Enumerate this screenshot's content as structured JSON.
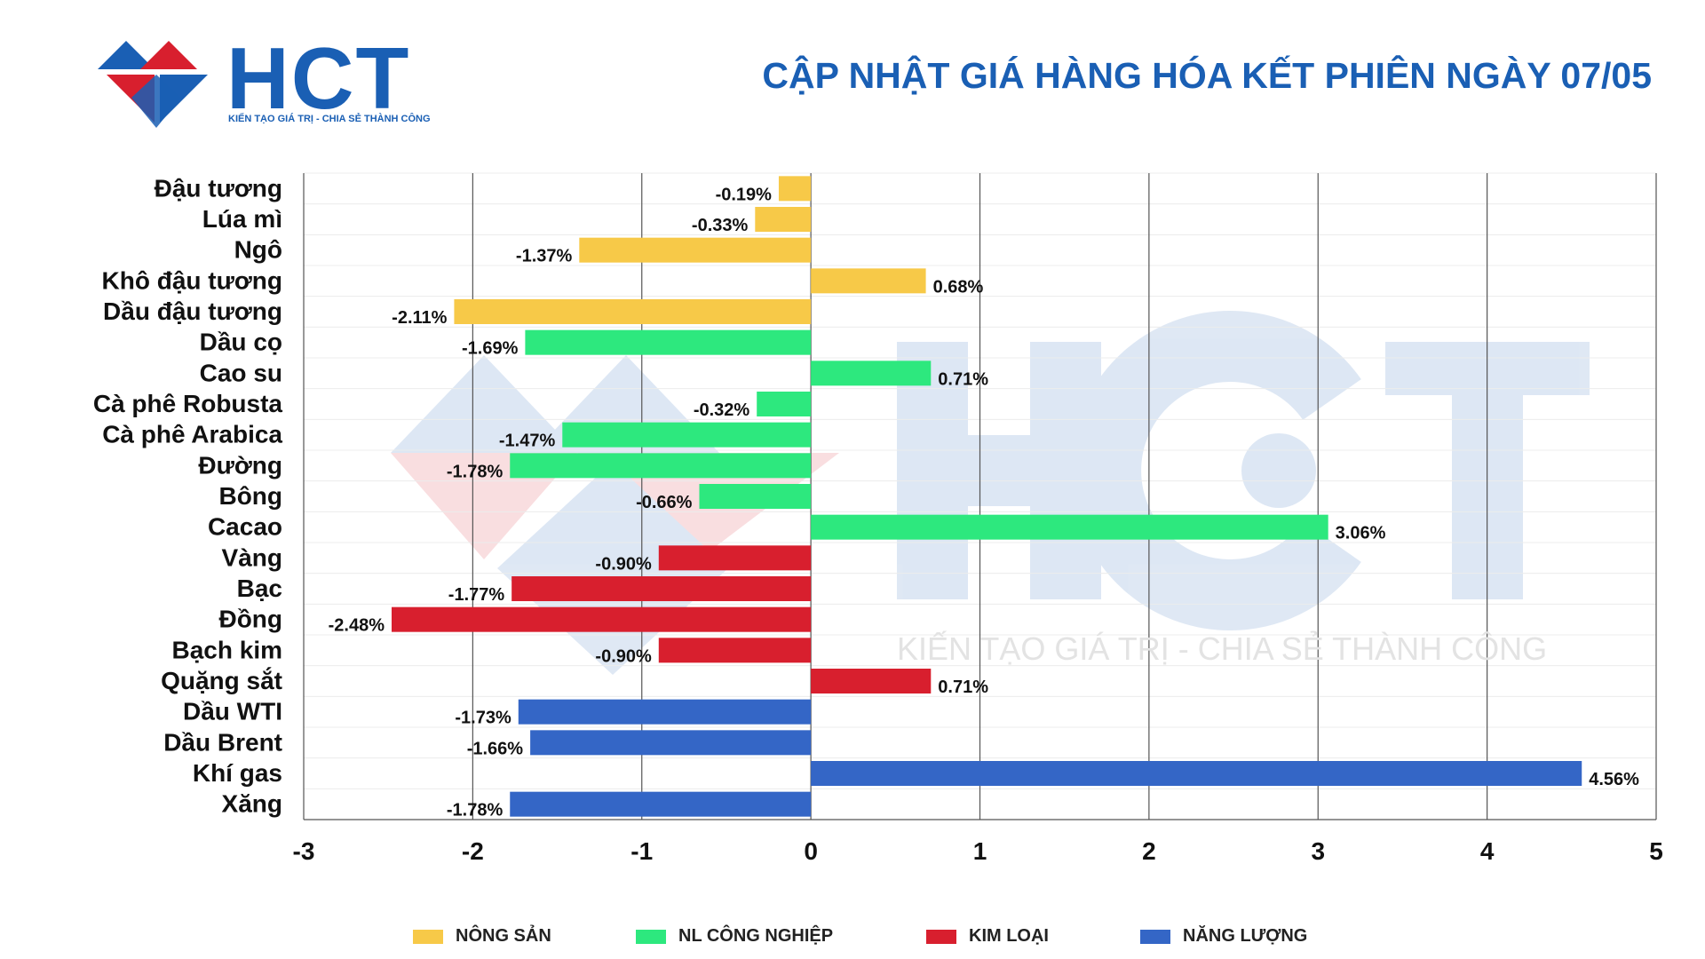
{
  "brand": {
    "name": "HCT",
    "tagline": "KIẾN TẠO GIÁ TRỊ - CHIA SẺ THÀNH CÔNG",
    "color": "#1a5fb4"
  },
  "title": "CẬP NHẬT GIÁ HÀNG HÓA KẾT PHIÊN NGÀY 07/05",
  "chart_data": {
    "type": "bar",
    "orientation": "horizontal",
    "categories": [
      "Đậu tương",
      "Lúa mì",
      "Ngô",
      "Khô đậu tương",
      "Dầu đậu tương",
      "Dầu cọ",
      "Cao su",
      "Cà phê Robusta",
      "Cà phê Arabica",
      "Đường",
      "Bông",
      "Cacao",
      "Vàng",
      "Bạc",
      "Đồng",
      "Bạch kim",
      "Quặng sắt",
      "Dầu WTI",
      "Dầu Brent",
      "Khí gas",
      "Xăng"
    ],
    "values": [
      -0.19,
      -0.33,
      -1.37,
      0.68,
      -2.11,
      -1.69,
      0.71,
      -0.32,
      -1.47,
      -1.78,
      -0.66,
      3.06,
      -0.9,
      -1.77,
      -2.48,
      -0.9,
      0.71,
      -1.73,
      -1.66,
      4.56,
      -1.78
    ],
    "data_labels": [
      "-0.19%",
      "-0.33%",
      "-1.37%",
      "0.68%",
      "-2.11%",
      "-1.69%",
      "0.71%",
      "-0.32%",
      "-1.47%",
      "-1.78%",
      "-0.66%",
      "3.06%",
      "-0.90%",
      "-1.77%",
      "-2.48%",
      "-0.90%",
      "0.71%",
      "-1.73%",
      "-1.66%",
      "4.56%",
      "-1.78%"
    ],
    "groups": [
      "Nông sản",
      "Nông sản",
      "Nông sản",
      "Nông sản",
      "Nông sản",
      "NL công nghiệp",
      "NL công nghiệp",
      "NL công nghiệp",
      "NL công nghiệp",
      "NL công nghiệp",
      "NL công nghiệp",
      "NL công nghiệp",
      "Kim loại",
      "Kim loại",
      "Kim loại",
      "Kim loại",
      "Kim loại",
      "Năng lượng",
      "Năng lượng",
      "Năng lượng",
      "Năng lượng"
    ],
    "xlim": [
      -3,
      5
    ],
    "xticks": [
      "-3",
      "-2",
      "-1",
      "0",
      "1",
      "2",
      "3",
      "4",
      "5"
    ],
    "grid": true,
    "legend": [
      {
        "name": "NÔNG SẢN",
        "group": "Nông sản",
        "color": "#f7c948"
      },
      {
        "name": "NL CÔNG NGHIỆP",
        "group": "NL công nghiệp",
        "color": "#2de87e"
      },
      {
        "name": "KIM LOẠI",
        "group": "Kim loại",
        "color": "#d81f2e"
      },
      {
        "name": "NĂNG LƯỢNG",
        "group": "Năng lượng",
        "color": "#3466c6"
      }
    ],
    "legend_position": "bottom"
  }
}
